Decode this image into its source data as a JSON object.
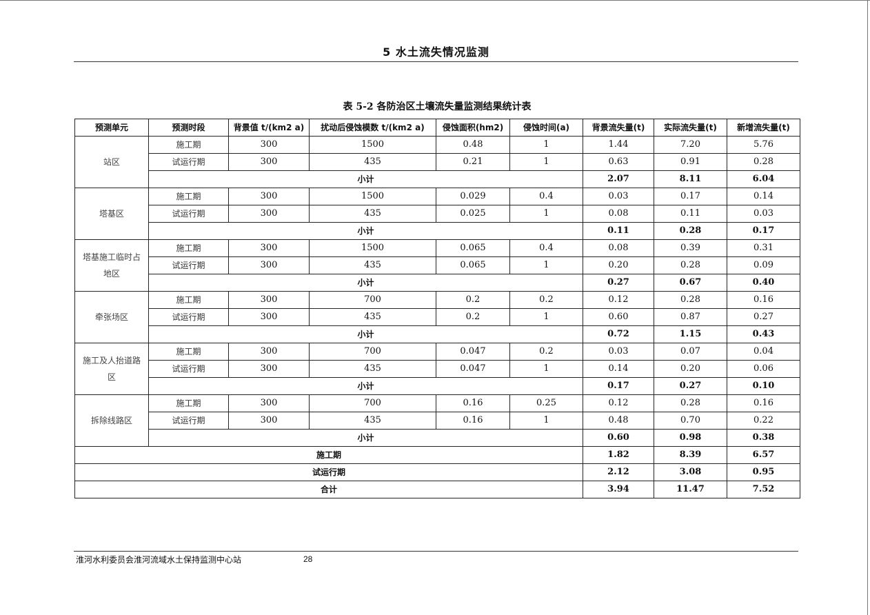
{
  "header": {
    "chapter_title": "5 水土流失情况监测"
  },
  "table": {
    "title": "表 5-2  各防治区土壤流失量监测结果统计表",
    "columns": [
      "预测单元",
      "预测时段",
      "背景值 t/(km2 a)",
      "扰动后侵蚀模数 t/(km2 a)",
      "侵蚀面积(hm2)",
      "侵蚀时间(a)",
      "背景流失量(t)",
      "实际流失量(t)",
      "新增流失量(t)"
    ],
    "subtotal_label": "小计",
    "units": [
      {
        "name": "站区",
        "rows": [
          [
            "施工期",
            "300",
            "1500",
            "0.48",
            "1",
            "1.44",
            "7.20",
            "5.76"
          ],
          [
            "试运行期",
            "300",
            "435",
            "0.21",
            "1",
            "0.63",
            "0.91",
            "0.28"
          ]
        ],
        "subtotal": [
          "2.07",
          "8.11",
          "6.04"
        ]
      },
      {
        "name": "塔基区",
        "rows": [
          [
            "施工期",
            "300",
            "1500",
            "0.029",
            "0.4",
            "0.03",
            "0.17",
            "0.14"
          ],
          [
            "试运行期",
            "300",
            "435",
            "0.025",
            "1",
            "0.08",
            "0.11",
            "0.03"
          ]
        ],
        "subtotal": [
          "0.11",
          "0.28",
          "0.17"
        ]
      },
      {
        "name": "塔基施工临时占地区",
        "rows": [
          [
            "施工期",
            "300",
            "1500",
            "0.065",
            "0.4",
            "0.08",
            "0.39",
            "0.31"
          ],
          [
            "试运行期",
            "300",
            "435",
            "0.065",
            "1",
            "0.20",
            "0.28",
            "0.09"
          ]
        ],
        "subtotal": [
          "0.27",
          "0.67",
          "0.40"
        ]
      },
      {
        "name": "牵张场区",
        "rows": [
          [
            "施工期",
            "300",
            "700",
            "0.2",
            "0.2",
            "0.12",
            "0.28",
            "0.16"
          ],
          [
            "试运行期",
            "300",
            "435",
            "0.2",
            "1",
            "0.60",
            "0.87",
            "0.27"
          ]
        ],
        "subtotal": [
          "0.72",
          "1.15",
          "0.43"
        ]
      },
      {
        "name": "施工及人抬道路区",
        "rows": [
          [
            "施工期",
            "300",
            "700",
            "0.047",
            "0.2",
            "0.03",
            "0.07",
            "0.04"
          ],
          [
            "试运行期",
            "300",
            "435",
            "0.047",
            "1",
            "0.14",
            "0.20",
            "0.06"
          ]
        ],
        "subtotal": [
          "0.17",
          "0.27",
          "0.10"
        ]
      },
      {
        "name": "拆除线路区",
        "rows": [
          [
            "施工期",
            "300",
            "700",
            "0.16",
            "0.25",
            "0.12",
            "0.28",
            "0.16"
          ],
          [
            "试运行期",
            "300",
            "435",
            "0.16",
            "1",
            "0.48",
            "0.70",
            "0.22"
          ]
        ],
        "subtotal": [
          "0.60",
          "0.98",
          "0.38"
        ]
      }
    ],
    "totals": [
      {
        "label": "施工期",
        "values": [
          "1.82",
          "8.39",
          "6.57"
        ]
      },
      {
        "label": "试运行期",
        "values": [
          "2.12",
          "3.08",
          "0.95"
        ]
      },
      {
        "label": "合计",
        "values": [
          "3.94",
          "11.47",
          "7.52"
        ]
      }
    ]
  },
  "footer": {
    "organization": "淮河水利委员会淮河流域水土保持监测中心站",
    "page_number": "28"
  }
}
